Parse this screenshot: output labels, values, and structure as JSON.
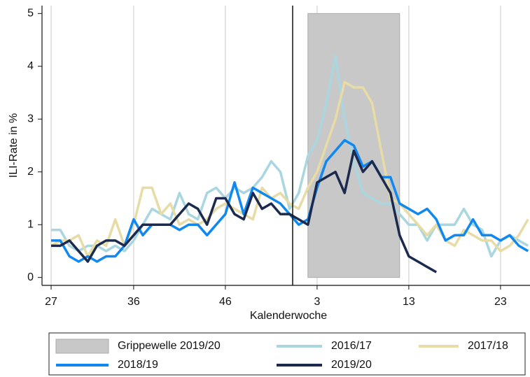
{
  "chart_data": {
    "type": "line",
    "x_label": "Kalenderwoche",
    "y_label": "ILI-Rate in %",
    "categories": [
      "27",
      null,
      null,
      null,
      null,
      null,
      null,
      null,
      null,
      "36",
      null,
      null,
      null,
      null,
      null,
      null,
      null,
      null,
      null,
      "46",
      null,
      null,
      null,
      null,
      null,
      null,
      null,
      null,
      null,
      "3",
      null,
      null,
      null,
      null,
      null,
      null,
      null,
      null,
      null,
      "13",
      null,
      null,
      null,
      null,
      null,
      null,
      null,
      null,
      null,
      "23",
      null,
      null,
      null
    ],
    "ylim": [
      -0.15,
      5.15
    ],
    "yticks": [
      0,
      1,
      2,
      3,
      4,
      5
    ],
    "grid": true,
    "band": {
      "name": "Grippewelle 2019/20",
      "color": "#c8c8c8",
      "start": 28,
      "end": 38,
      "top": 5
    },
    "series": [
      {
        "name": "2016/17",
        "color": "#a9d6df",
        "values": [
          0.9,
          0.9,
          0.6,
          0.5,
          0.6,
          0.6,
          0.5,
          0.6,
          0.5,
          0.7,
          1.0,
          1.3,
          1.2,
          1.1,
          1.6,
          1.2,
          1.1,
          1.6,
          1.7,
          1.5,
          1.7,
          1.6,
          1.7,
          1.9,
          2.2,
          2.0,
          1.3,
          1.6,
          2.3,
          2.6,
          3.3,
          4.2,
          3.0,
          2.2,
          1.6,
          1.5,
          1.4,
          1.4,
          1.2,
          1.0,
          1.0,
          0.7,
          1.0,
          1.0,
          1.0,
          1.3,
          1.0,
          0.9,
          0.4,
          0.7,
          0.8,
          0.7,
          0.6
        ]
      },
      {
        "name": "2017/18",
        "color": "#e7dba6",
        "values": [
          0.6,
          0.7,
          0.7,
          0.8,
          0.4,
          0.7,
          0.6,
          1.1,
          0.6,
          1.0,
          1.7,
          1.7,
          1.2,
          1.4,
          1.0,
          1.1,
          1.0,
          1.1,
          1.3,
          1.4,
          1.3,
          1.2,
          1.1,
          1.7,
          1.5,
          1.6,
          1.4,
          1.3,
          1.7,
          2.0,
          2.5,
          3.0,
          3.7,
          3.6,
          3.6,
          3.3,
          2.4,
          1.5,
          1.4,
          1.2,
          1.0,
          0.8,
          1.0,
          0.7,
          0.6,
          0.9,
          0.8,
          0.7,
          0.7,
          0.5,
          0.6,
          0.8,
          1.1
        ]
      },
      {
        "name": "2018/19",
        "color": "#1088f0",
        "values": [
          0.7,
          0.7,
          0.4,
          0.3,
          0.4,
          0.3,
          0.4,
          0.4,
          0.6,
          1.1,
          0.8,
          1.0,
          1.0,
          1.0,
          0.9,
          1.0,
          1.0,
          0.8,
          1.0,
          1.2,
          1.8,
          1.2,
          1.7,
          1.6,
          1.5,
          1.4,
          1.2,
          1.0,
          1.1,
          1.7,
          2.2,
          2.4,
          2.6,
          2.5,
          2.1,
          2.2,
          1.9,
          1.9,
          1.4,
          1.3,
          1.2,
          1.3,
          1.1,
          0.7,
          0.8,
          0.8,
          1.1,
          0.8,
          0.8,
          0.7,
          0.8,
          0.6,
          0.5
        ]
      },
      {
        "name": "2019/20",
        "color": "#1c2a4e",
        "values": [
          0.6,
          0.6,
          0.7,
          0.5,
          0.3,
          0.6,
          0.7,
          0.7,
          0.6,
          0.8,
          1.0,
          1.0,
          1.0,
          1.0,
          1.2,
          1.4,
          1.3,
          1.0,
          1.5,
          1.5,
          1.2,
          1.1,
          1.6,
          1.3,
          1.4,
          1.2,
          1.2,
          1.1,
          1.0,
          1.8,
          1.9,
          2.0,
          1.6,
          2.4,
          2.0,
          2.2,
          1.9,
          1.6,
          0.8,
          0.4,
          0.3,
          0.2,
          0.1,
          null,
          null,
          null,
          null,
          null,
          null,
          null,
          null,
          null,
          null
        ]
      }
    ]
  }
}
